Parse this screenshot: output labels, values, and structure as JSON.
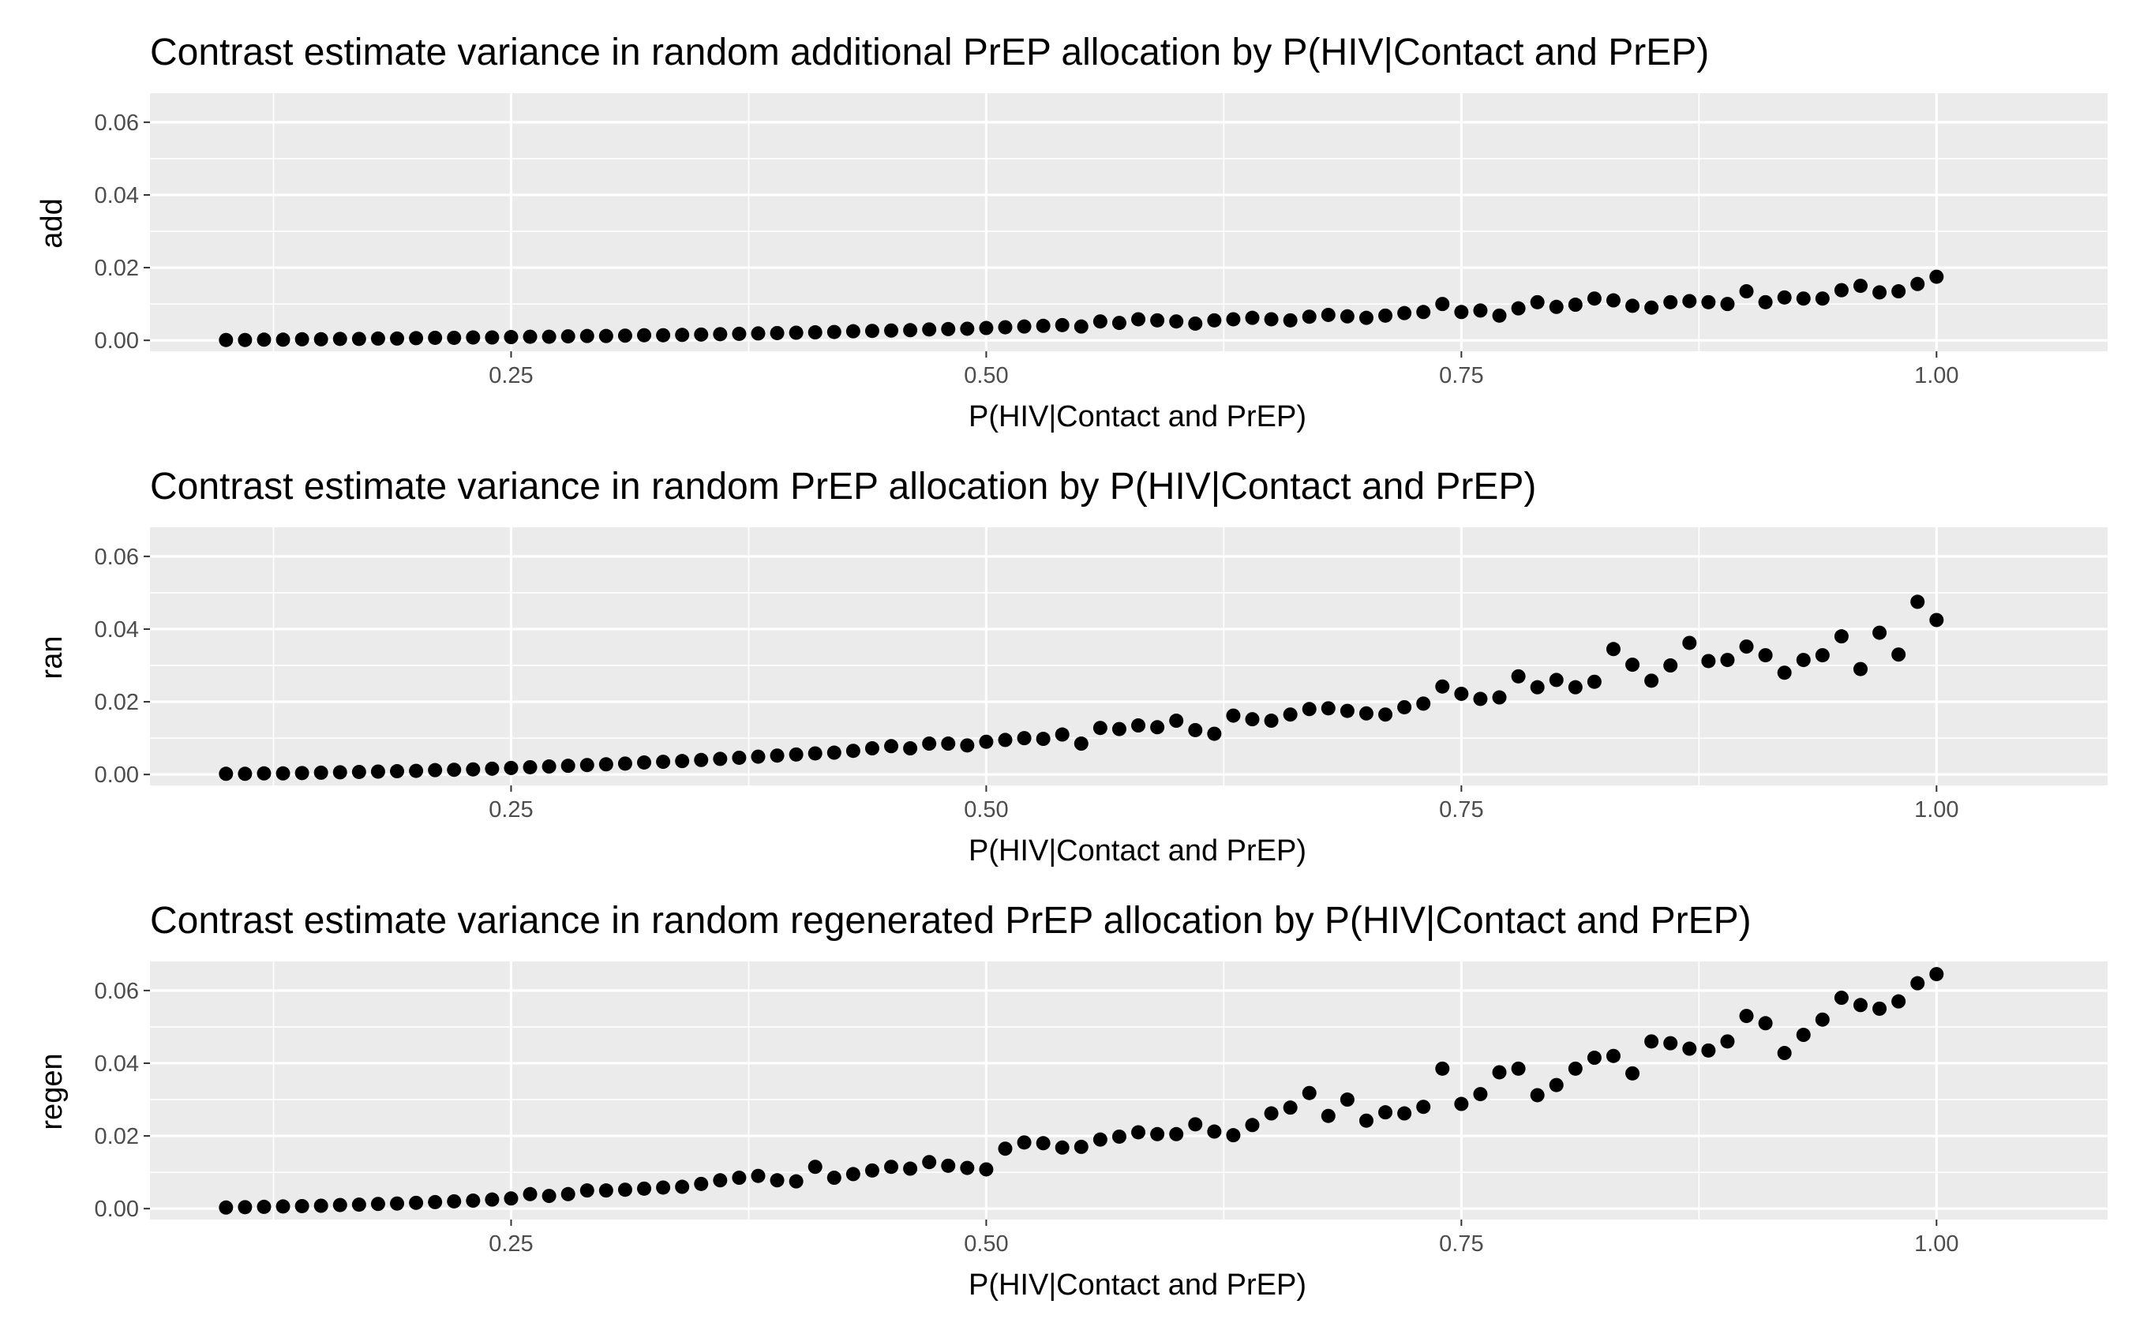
{
  "chart_data": [
    {
      "type": "scatter",
      "title": "Contrast estimate variance in random additional PrEP allocation by P(HIV|Contact and PrEP)",
      "xlabel": "P(HIV|Contact and PrEP)",
      "ylabel": "add",
      "xlim": [
        0.06,
        1.09
      ],
      "ylim": [
        -0.003,
        0.068
      ],
      "x_ticks": [
        0.25,
        0.5,
        0.75,
        1.0
      ],
      "x_tick_labels": [
        "0.25",
        "0.50",
        "0.75",
        "1.00"
      ],
      "y_ticks": [
        0.0,
        0.02,
        0.04,
        0.06
      ],
      "y_tick_labels": [
        "0.00",
        "0.02",
        "0.04",
        "0.06"
      ],
      "grid": true,
      "point_color": "#000000",
      "x": [
        0.1,
        0.11,
        0.12,
        0.13,
        0.14,
        0.15,
        0.16,
        0.17,
        0.18,
        0.19,
        0.2,
        0.21,
        0.22,
        0.23,
        0.24,
        0.25,
        0.26,
        0.27,
        0.28,
        0.29,
        0.3,
        0.31,
        0.32,
        0.33,
        0.34,
        0.35,
        0.36,
        0.37,
        0.38,
        0.39,
        0.4,
        0.41,
        0.42,
        0.43,
        0.44,
        0.45,
        0.46,
        0.47,
        0.48,
        0.49,
        0.5,
        0.51,
        0.52,
        0.53,
        0.54,
        0.55,
        0.56,
        0.57,
        0.58,
        0.59,
        0.6,
        0.61,
        0.62,
        0.63,
        0.64,
        0.65,
        0.66,
        0.67,
        0.68,
        0.69,
        0.7,
        0.71,
        0.72,
        0.73,
        0.74,
        0.75,
        0.76,
        0.77,
        0.78,
        0.79,
        0.8,
        0.81,
        0.82,
        0.83,
        0.84,
        0.85,
        0.86,
        0.87,
        0.88,
        0.89,
        0.9,
        0.91,
        0.92,
        0.93,
        0.94,
        0.95,
        0.96,
        0.97,
        0.98,
        0.99,
        1.0
      ],
      "y": [
        0.0001,
        0.0001,
        0.0002,
        0.0002,
        0.0003,
        0.0003,
        0.0004,
        0.0004,
        0.0005,
        0.0005,
        0.0006,
        0.0007,
        0.0007,
        0.0008,
        0.0008,
        0.0009,
        0.001,
        0.001,
        0.0011,
        0.0012,
        0.0012,
        0.0013,
        0.0014,
        0.0014,
        0.0015,
        0.0016,
        0.0017,
        0.0018,
        0.0019,
        0.002,
        0.0021,
        0.0022,
        0.0023,
        0.0025,
        0.0026,
        0.0027,
        0.0028,
        0.003,
        0.0031,
        0.0032,
        0.0034,
        0.0036,
        0.0038,
        0.004,
        0.0042,
        0.0038,
        0.0052,
        0.0048,
        0.0058,
        0.0055,
        0.0052,
        0.0046,
        0.0055,
        0.0058,
        0.0062,
        0.0058,
        0.0055,
        0.0065,
        0.007,
        0.0066,
        0.0062,
        0.0068,
        0.0075,
        0.0078,
        0.01,
        0.0078,
        0.0082,
        0.0068,
        0.0088,
        0.0105,
        0.0092,
        0.0098,
        0.0115,
        0.011,
        0.0095,
        0.009,
        0.0105,
        0.0108,
        0.0105,
        0.01,
        0.0135,
        0.0105,
        0.0118,
        0.0115,
        0.0115,
        0.0138,
        0.015,
        0.0132,
        0.0135,
        0.0155,
        0.0175
      ]
    },
    {
      "type": "scatter",
      "title": "Contrast estimate variance in random PrEP allocation by P(HIV|Contact and PrEP)",
      "xlabel": "P(HIV|Contact and PrEP)",
      "ylabel": "ran",
      "xlim": [
        0.06,
        1.09
      ],
      "ylim": [
        -0.003,
        0.068
      ],
      "x_ticks": [
        0.25,
        0.5,
        0.75,
        1.0
      ],
      "x_tick_labels": [
        "0.25",
        "0.50",
        "0.75",
        "1.00"
      ],
      "y_ticks": [
        0.0,
        0.02,
        0.04,
        0.06
      ],
      "y_tick_labels": [
        "0.00",
        "0.02",
        "0.04",
        "0.06"
      ],
      "grid": true,
      "point_color": "#000000",
      "x": [
        0.1,
        0.11,
        0.12,
        0.13,
        0.14,
        0.15,
        0.16,
        0.17,
        0.18,
        0.19,
        0.2,
        0.21,
        0.22,
        0.23,
        0.24,
        0.25,
        0.26,
        0.27,
        0.28,
        0.29,
        0.3,
        0.31,
        0.32,
        0.33,
        0.34,
        0.35,
        0.36,
        0.37,
        0.38,
        0.39,
        0.4,
        0.41,
        0.42,
        0.43,
        0.44,
        0.45,
        0.46,
        0.47,
        0.48,
        0.49,
        0.5,
        0.51,
        0.52,
        0.53,
        0.54,
        0.55,
        0.56,
        0.57,
        0.58,
        0.59,
        0.6,
        0.61,
        0.62,
        0.63,
        0.64,
        0.65,
        0.66,
        0.67,
        0.68,
        0.69,
        0.7,
        0.71,
        0.72,
        0.73,
        0.74,
        0.75,
        0.76,
        0.77,
        0.78,
        0.79,
        0.8,
        0.81,
        0.82,
        0.83,
        0.84,
        0.85,
        0.86,
        0.87,
        0.88,
        0.89,
        0.9,
        0.91,
        0.92,
        0.93,
        0.94,
        0.95,
        0.96,
        0.97,
        0.98,
        0.99,
        1.0
      ],
      "y": [
        0.0002,
        0.0002,
        0.0003,
        0.0003,
        0.0004,
        0.0005,
        0.0006,
        0.0007,
        0.0008,
        0.0009,
        0.001,
        0.0012,
        0.0013,
        0.0014,
        0.0016,
        0.0018,
        0.002,
        0.0022,
        0.0024,
        0.0026,
        0.0028,
        0.003,
        0.0033,
        0.0035,
        0.0037,
        0.004,
        0.0043,
        0.0046,
        0.0049,
        0.0052,
        0.0055,
        0.0058,
        0.006,
        0.0065,
        0.0072,
        0.0078,
        0.0072,
        0.0085,
        0.0085,
        0.008,
        0.009,
        0.0095,
        0.01,
        0.0098,
        0.011,
        0.0085,
        0.0128,
        0.0125,
        0.0135,
        0.013,
        0.0148,
        0.0122,
        0.0112,
        0.0162,
        0.0152,
        0.0148,
        0.0165,
        0.018,
        0.0182,
        0.0175,
        0.0168,
        0.0165,
        0.0185,
        0.0195,
        0.0242,
        0.0222,
        0.0208,
        0.0212,
        0.027,
        0.024,
        0.026,
        0.024,
        0.0255,
        0.0345,
        0.0302,
        0.0258,
        0.03,
        0.0362,
        0.0312,
        0.0315,
        0.0352,
        0.0328,
        0.028,
        0.0315,
        0.0328,
        0.038,
        0.029,
        0.039,
        0.033,
        0.0475,
        0.0425
      ]
    },
    {
      "type": "scatter",
      "title": "Contrast estimate variance in random regenerated PrEP allocation by P(HIV|Contact and PrEP)",
      "xlabel": "P(HIV|Contact and PrEP)",
      "ylabel": "regen",
      "xlim": [
        0.06,
        1.09
      ],
      "ylim": [
        -0.003,
        0.068
      ],
      "x_ticks": [
        0.25,
        0.5,
        0.75,
        1.0
      ],
      "x_tick_labels": [
        "0.25",
        "0.50",
        "0.75",
        "1.00"
      ],
      "y_ticks": [
        0.0,
        0.02,
        0.04,
        0.06
      ],
      "y_tick_labels": [
        "0.00",
        "0.02",
        "0.04",
        "0.06"
      ],
      "grid": true,
      "point_color": "#000000",
      "x": [
        0.1,
        0.11,
        0.12,
        0.13,
        0.14,
        0.15,
        0.16,
        0.17,
        0.18,
        0.19,
        0.2,
        0.21,
        0.22,
        0.23,
        0.24,
        0.25,
        0.26,
        0.27,
        0.28,
        0.29,
        0.3,
        0.31,
        0.32,
        0.33,
        0.34,
        0.35,
        0.36,
        0.37,
        0.38,
        0.39,
        0.4,
        0.41,
        0.42,
        0.43,
        0.44,
        0.45,
        0.46,
        0.47,
        0.48,
        0.49,
        0.5,
        0.51,
        0.52,
        0.53,
        0.54,
        0.55,
        0.56,
        0.57,
        0.58,
        0.59,
        0.6,
        0.61,
        0.62,
        0.63,
        0.64,
        0.65,
        0.66,
        0.67,
        0.68,
        0.69,
        0.7,
        0.71,
        0.72,
        0.73,
        0.74,
        0.75,
        0.76,
        0.77,
        0.78,
        0.79,
        0.8,
        0.81,
        0.82,
        0.83,
        0.84,
        0.85,
        0.86,
        0.87,
        0.88,
        0.89,
        0.9,
        0.91,
        0.92,
        0.93,
        0.94,
        0.95,
        0.96,
        0.97,
        0.98,
        0.99,
        1.0
      ],
      "y": [
        0.0003,
        0.0004,
        0.0005,
        0.0006,
        0.0007,
        0.0008,
        0.001,
        0.0011,
        0.0013,
        0.0014,
        0.0016,
        0.0018,
        0.002,
        0.0022,
        0.0025,
        0.0028,
        0.004,
        0.0035,
        0.004,
        0.005,
        0.005,
        0.0052,
        0.0055,
        0.0058,
        0.006,
        0.0068,
        0.0078,
        0.0085,
        0.009,
        0.0078,
        0.0075,
        0.0115,
        0.0085,
        0.0095,
        0.0105,
        0.0115,
        0.011,
        0.0128,
        0.0118,
        0.0112,
        0.0108,
        0.0165,
        0.0182,
        0.018,
        0.0168,
        0.017,
        0.019,
        0.0198,
        0.021,
        0.0205,
        0.0205,
        0.0232,
        0.0212,
        0.0202,
        0.023,
        0.0262,
        0.0278,
        0.0318,
        0.0255,
        0.03,
        0.0242,
        0.0265,
        0.0262,
        0.028,
        0.0385,
        0.0288,
        0.0315,
        0.0375,
        0.0385,
        0.0312,
        0.034,
        0.0385,
        0.0415,
        0.042,
        0.0372,
        0.046,
        0.0455,
        0.044,
        0.0435,
        0.046,
        0.053,
        0.051,
        0.0428,
        0.0478,
        0.052,
        0.058,
        0.056,
        0.055,
        0.057,
        0.062,
        0.0645
      ]
    }
  ]
}
